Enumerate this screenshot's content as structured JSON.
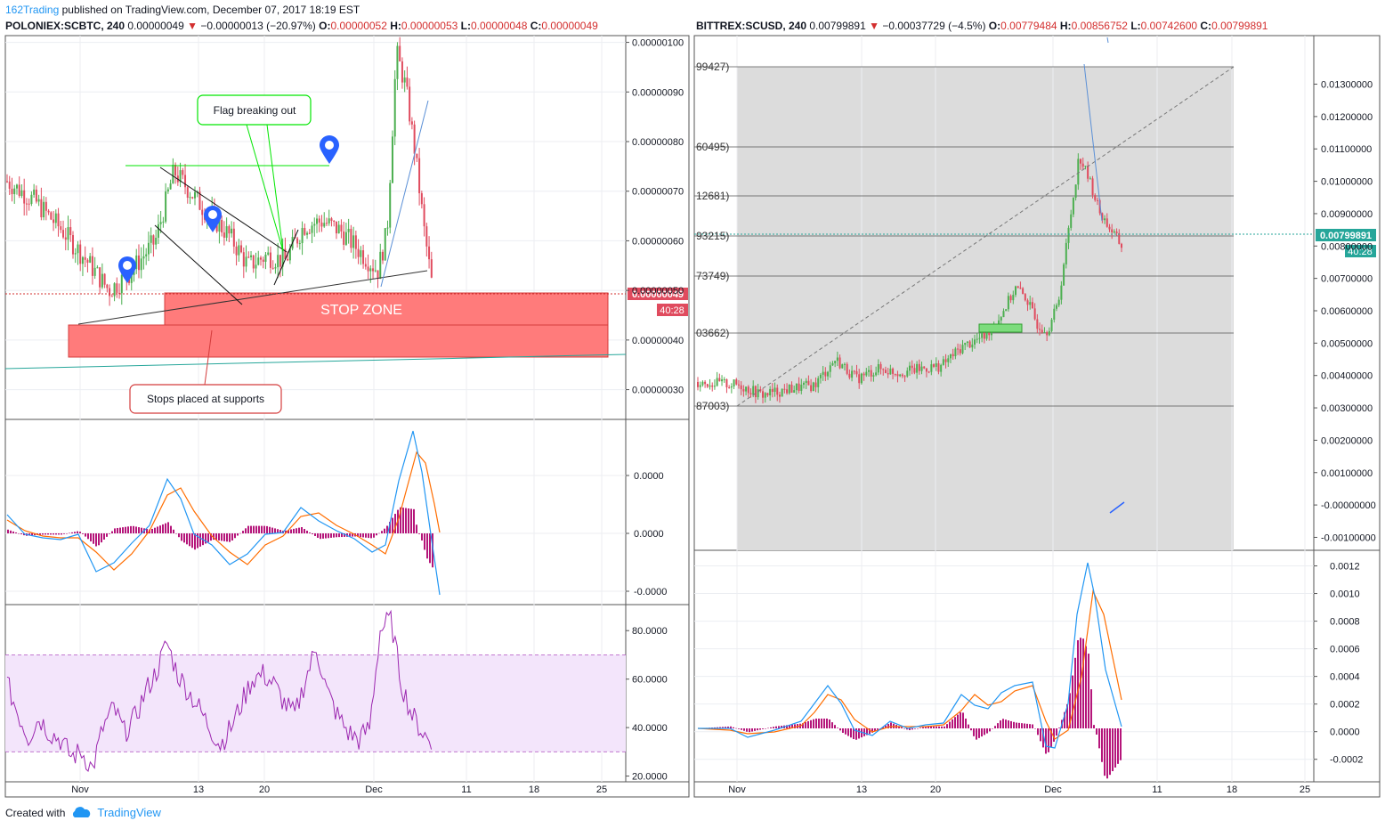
{
  "header": {
    "user": "162Trading",
    "published": " published on TradingView.com, December 07, 2017 18:19 EST"
  },
  "left_symbol": {
    "name": "POLONIEX:SCBTC, 240",
    "last": "0.00000049",
    "change": "−0.00000013 (−20.97%)",
    "o_label": "O:",
    "o": "0.00000052",
    "h_label": "H:",
    "h": "0.00000053",
    "l_label": "L:",
    "l": "0.00000048",
    "c_label": "C:",
    "c": "0.00000049"
  },
  "right_symbol": {
    "name": "BITTREX:SCUSD, 240",
    "last": "0.00799891",
    "change": "−0.00037729 (−4.5%)",
    "o_label": "O:",
    "o": "0.00779484",
    "h_label": "H:",
    "h": "0.00856752",
    "l_label": "L:",
    "l": "0.00742600",
    "c_label": "C:",
    "c": "0.00799891"
  },
  "annotations": {
    "flag": "Flag breaking out",
    "stop_zone": "STOP ZONE",
    "stops": "Stops placed at supports"
  },
  "footer": {
    "created": "Created with",
    "brand": "TradingView"
  },
  "colors": {
    "up": "#4caf50",
    "down": "#e04b5e",
    "macd": "#2196f3",
    "signal": "#ff6d00",
    "hist": "#b5157a",
    "rsi": "#9c27b0",
    "rsi_band": "#f3e5fb",
    "stop": "#ff7b7b",
    "fib_bg": "#dcdcdc",
    "green_note": "#00e600",
    "pin": "#2962ff"
  },
  "chart_data": [
    {
      "type": "candlestick",
      "name": "POLONIEX:SCBTC, 240",
      "x_ticks": [
        "Nov",
        "13",
        "20",
        "Dec",
        "11",
        "18",
        "25"
      ],
      "y_ticks": [
        "0.00000100",
        "0.00000090",
        "0.00000080",
        "0.00000070",
        "0.00000060",
        "0.00000050",
        "0.00000040",
        "0.00000030"
      ],
      "ylim": [
        2.4e-07,
        1.01e-06
      ],
      "last_price": "0.00000049",
      "countdown": "40:28",
      "close_path": [
        [
          0,
          7.2e-07
        ],
        [
          6,
          6.8e-07
        ],
        [
          12,
          6.2e-07
        ],
        [
          18,
          5.5e-07
        ],
        [
          22,
          5e-07
        ],
        [
          26,
          5.3e-07
        ],
        [
          32,
          6e-07
        ],
        [
          36,
          7.4e-07
        ],
        [
          42,
          6.7e-07
        ],
        [
          48,
          6.1e-07
        ],
        [
          52,
          5.5e-07
        ],
        [
          56,
          5.7e-07
        ],
        [
          60,
          5.6e-07
        ],
        [
          64,
          6.3e-07
        ],
        [
          68,
          6.4e-07
        ],
        [
          72,
          6.2e-07
        ],
        [
          76,
          5.8e-07
        ],
        [
          80,
          5.4e-07
        ],
        [
          82,
          6.2e-07
        ],
        [
          84,
          9.8e-07
        ],
        [
          86,
          9.1e-07
        ],
        [
          88,
          7.8e-07
        ],
        [
          90,
          6.2e-07
        ],
        [
          92,
          4.9e-07
        ]
      ]
    },
    {
      "type": "line",
      "name": "MACD",
      "y_ticks": [
        "0.0000",
        "0.0000",
        "-0.0000"
      ]
    },
    {
      "type": "line",
      "name": "RSI",
      "y_ticks": [
        "80.0000",
        "60.0000",
        "40.0000",
        "20.0000"
      ],
      "ylim": [
        18,
        90
      ],
      "band": [
        30,
        70
      ],
      "series": [
        {
          "values": [
            58,
            46,
            36,
            44,
            38,
            35,
            28,
            30,
            23,
            40,
            48,
            38,
            44,
            55,
            63,
            75,
            62,
            55,
            48,
            40,
            33,
            40,
            50,
            60,
            62,
            58,
            50,
            45,
            60,
            73,
            55,
            45,
            38,
            35,
            40,
            80,
            85,
            58,
            45,
            38,
            32
          ]
        }
      ]
    },
    {
      "type": "candlestick",
      "name": "BITTREX:SCUSD, 240",
      "x_ticks": [
        "Nov",
        "13",
        "20",
        "Dec",
        "11",
        "18",
        "25"
      ],
      "y_ticks": [
        "0.01300000",
        "0.01200000",
        "0.01100000",
        "0.01000000",
        "0.00900000",
        "0.00800000",
        "0.00700000",
        "0.00600000",
        "0.00500000",
        "0.00400000",
        "0.00300000",
        "0.00200000",
        "0.00100000",
        "-0.00000000",
        "-0.00100000"
      ],
      "ylim": [
        -0.0014,
        0.0145
      ],
      "last_price": "0.00799891",
      "countdown": "40:28",
      "fib_labels": [
        "99427)",
        "60495)",
        "12681)",
        "93215)",
        "73749)",
        "03662)",
        "87003)"
      ],
      "close_path": [
        [
          0,
          0.0038
        ],
        [
          8,
          0.0037
        ],
        [
          12,
          0.0034
        ],
        [
          18,
          0.0036
        ],
        [
          22,
          0.0037
        ],
        [
          26,
          0.0045
        ],
        [
          30,
          0.0039
        ],
        [
          34,
          0.0042
        ],
        [
          38,
          0.0041
        ],
        [
          42,
          0.0042
        ],
        [
          46,
          0.0043
        ],
        [
          50,
          0.0049
        ],
        [
          54,
          0.0052
        ],
        [
          57,
          0.0058
        ],
        [
          60,
          0.0067
        ],
        [
          62,
          0.0064
        ],
        [
          64,
          0.0056
        ],
        [
          66,
          0.0054
        ],
        [
          68,
          0.0062
        ],
        [
          70,
          0.0085
        ],
        [
          72,
          0.0108
        ],
        [
          74,
          0.01
        ],
        [
          76,
          0.009
        ],
        [
          78,
          0.0085
        ],
        [
          80,
          0.008
        ]
      ]
    },
    {
      "type": "line",
      "name": "MACD",
      "y_ticks": [
        "0.0012",
        "0.0010",
        "0.0008",
        "0.0006",
        "0.0004",
        "0.0002",
        "0.0000",
        "-0.0002"
      ],
      "ylim": [
        -0.00035,
        0.0013
      ]
    }
  ]
}
